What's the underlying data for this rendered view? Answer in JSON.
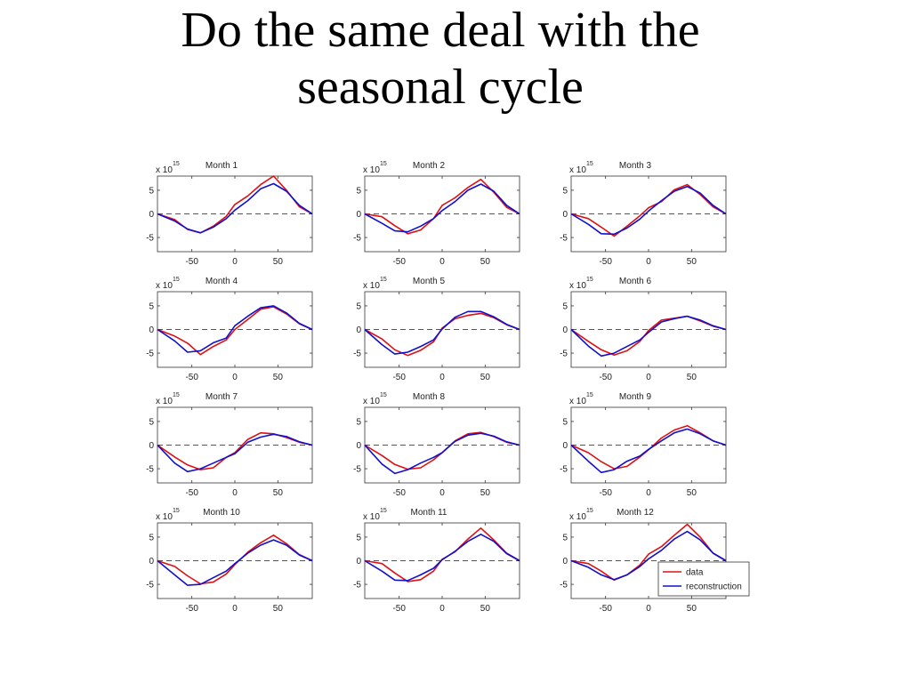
{
  "slide": {
    "title_line1": "Do the same deal with the",
    "title_line2": "seasonal cycle"
  },
  "colors": {
    "data": "#e01010",
    "reconstruction": "#1010d0",
    "zero_line": "#555555"
  },
  "chart_data": [
    {
      "type": "line",
      "title": "Month 1",
      "y_exponent": "x 10",
      "y_exponent_power": "15",
      "xlim": [
        -90,
        90
      ],
      "ylim": [
        -8,
        8
      ],
      "xticks": [
        -50,
        0,
        50
      ],
      "yticks": [
        5,
        0,
        -5
      ],
      "grid": false,
      "series": [
        {
          "name": "data",
          "color": "#e01010",
          "x": [
            -90,
            -70,
            -55,
            -40,
            -25,
            -10,
            0,
            15,
            30,
            45,
            60,
            75,
            90
          ],
          "y": [
            0,
            -1.2,
            -3.3,
            -4,
            -2.6,
            -0.5,
            2,
            3.8,
            6.2,
            8,
            5,
            1.5,
            0
          ]
        },
        {
          "name": "reconstruction",
          "color": "#1010d0",
          "x": [
            -90,
            -70,
            -55,
            -40,
            -25,
            -10,
            0,
            15,
            30,
            45,
            60,
            75,
            90
          ],
          "y": [
            0,
            -1.5,
            -3.2,
            -4,
            -2.8,
            -1,
            0.8,
            2.8,
            5.3,
            6.4,
            4.8,
            1.8,
            0
          ]
        }
      ]
    },
    {
      "type": "line",
      "title": "Month 2",
      "y_exponent": "x 10",
      "y_exponent_power": "15",
      "xlim": [
        -90,
        90
      ],
      "ylim": [
        -8,
        8
      ],
      "xticks": [
        -50,
        0,
        50
      ],
      "yticks": [
        5,
        0,
        -5
      ],
      "grid": false,
      "series": [
        {
          "name": "data",
          "color": "#e01010",
          "x": [
            -90,
            -70,
            -55,
            -40,
            -25,
            -10,
            0,
            15,
            30,
            45,
            60,
            75,
            90
          ],
          "y": [
            0,
            -0.6,
            -2.5,
            -4.2,
            -3.4,
            -1,
            1.8,
            3.4,
            5.6,
            7.3,
            4.6,
            1.4,
            0
          ]
        },
        {
          "name": "reconstruction",
          "color": "#1010d0",
          "x": [
            -90,
            -70,
            -55,
            -40,
            -25,
            -10,
            0,
            15,
            30,
            45,
            60,
            75,
            90
          ],
          "y": [
            0,
            -2,
            -3.6,
            -3.8,
            -2.6,
            -1,
            0.7,
            2.6,
            5,
            6.3,
            4.8,
            1.8,
            0
          ]
        }
      ]
    },
    {
      "type": "line",
      "title": "Month 3",
      "y_exponent": "x 10",
      "y_exponent_power": "15",
      "xlim": [
        -90,
        90
      ],
      "ylim": [
        -8,
        8
      ],
      "xticks": [
        -50,
        0,
        50
      ],
      "yticks": [
        5,
        0,
        -5
      ],
      "grid": false,
      "series": [
        {
          "name": "data",
          "color": "#e01010",
          "x": [
            -90,
            -70,
            -55,
            -40,
            -25,
            -10,
            0,
            15,
            30,
            45,
            60,
            75,
            90
          ],
          "y": [
            0,
            -1,
            -2.8,
            -4.7,
            -2.6,
            -0.4,
            1.3,
            2.6,
            5.1,
            6.2,
            4.1,
            1.5,
            0
          ]
        },
        {
          "name": "reconstruction",
          "color": "#1010d0",
          "x": [
            -90,
            -70,
            -55,
            -40,
            -25,
            -10,
            0,
            15,
            30,
            45,
            60,
            75,
            90
          ],
          "y": [
            0,
            -2.2,
            -4.2,
            -4.3,
            -3,
            -1.1,
            0.6,
            2.8,
            4.8,
            5.8,
            4.4,
            1.8,
            0
          ]
        }
      ]
    },
    {
      "type": "line",
      "title": "Month 4",
      "y_exponent": "x 10",
      "y_exponent_power": "15",
      "xlim": [
        -90,
        90
      ],
      "ylim": [
        -8,
        8
      ],
      "xticks": [
        -50,
        0,
        50
      ],
      "yticks": [
        5,
        0,
        -5
      ],
      "grid": false,
      "series": [
        {
          "name": "data",
          "color": "#e01010",
          "x": [
            -90,
            -70,
            -55,
            -40,
            -25,
            -10,
            0,
            15,
            30,
            45,
            60,
            75,
            90
          ],
          "y": [
            0,
            -1.4,
            -2.9,
            -5.3,
            -3.6,
            -2.2,
            0,
            2.1,
            4.3,
            4.8,
            3.3,
            1.2,
            0
          ]
        },
        {
          "name": "reconstruction",
          "color": "#1010d0",
          "x": [
            -90,
            -70,
            -55,
            -40,
            -25,
            -10,
            0,
            15,
            30,
            45,
            60,
            75,
            90
          ],
          "y": [
            0,
            -2.4,
            -4.8,
            -4.5,
            -2.8,
            -1.8,
            0.8,
            2.8,
            4.6,
            5,
            3.5,
            1.3,
            0
          ]
        }
      ]
    },
    {
      "type": "line",
      "title": "Month 5",
      "y_exponent": "x 10",
      "y_exponent_power": "15",
      "xlim": [
        -90,
        90
      ],
      "ylim": [
        -8,
        8
      ],
      "xticks": [
        -50,
        0,
        50
      ],
      "yticks": [
        5,
        0,
        -5
      ],
      "grid": false,
      "series": [
        {
          "name": "data",
          "color": "#e01010",
          "x": [
            -90,
            -70,
            -55,
            -40,
            -25,
            -10,
            0,
            15,
            30,
            45,
            60,
            75,
            90
          ],
          "y": [
            0,
            -2,
            -4.3,
            -5.5,
            -4.4,
            -2.6,
            0.3,
            2.3,
            3,
            3.4,
            2.5,
            1,
            0
          ]
        },
        {
          "name": "reconstruction",
          "color": "#1010d0",
          "x": [
            -90,
            -70,
            -55,
            -40,
            -25,
            -10,
            0,
            15,
            30,
            45,
            60,
            75,
            90
          ],
          "y": [
            0,
            -3.2,
            -5.2,
            -4.8,
            -3.6,
            -2.2,
            0.1,
            2.6,
            3.8,
            3.8,
            2.7,
            1.1,
            0
          ]
        }
      ]
    },
    {
      "type": "line",
      "title": "Month 6",
      "y_exponent": "x 10",
      "y_exponent_power": "15",
      "xlim": [
        -90,
        90
      ],
      "ylim": [
        -8,
        8
      ],
      "xticks": [
        -50,
        0,
        50
      ],
      "yticks": [
        5,
        0,
        -5
      ],
      "grid": false,
      "series": [
        {
          "name": "data",
          "color": "#e01010",
          "x": [
            -90,
            -70,
            -55,
            -40,
            -25,
            -10,
            0,
            15,
            30,
            45,
            60,
            75,
            90
          ],
          "y": [
            0,
            -2.5,
            -4.3,
            -5.4,
            -4.5,
            -2.5,
            -0.2,
            2,
            2.4,
            2.8,
            1.8,
            0.7,
            0
          ]
        },
        {
          "name": "reconstruction",
          "color": "#1010d0",
          "x": [
            -90,
            -70,
            -55,
            -40,
            -25,
            -10,
            0,
            15,
            30,
            45,
            60,
            75,
            90
          ],
          "y": [
            0,
            -3.5,
            -5.6,
            -5,
            -3.6,
            -2.2,
            -0.6,
            1.6,
            2.3,
            2.8,
            2,
            0.8,
            0
          ]
        }
      ]
    },
    {
      "type": "line",
      "title": "Month 7",
      "y_exponent": "x 10",
      "y_exponent_power": "15",
      "xlim": [
        -90,
        90
      ],
      "ylim": [
        -8,
        8
      ],
      "xticks": [
        -50,
        0,
        50
      ],
      "yticks": [
        5,
        0,
        -5
      ],
      "grid": false,
      "series": [
        {
          "name": "data",
          "color": "#e01010",
          "x": [
            -90,
            -70,
            -55,
            -40,
            -25,
            -10,
            0,
            15,
            30,
            45,
            60,
            75,
            90
          ],
          "y": [
            0,
            -2.5,
            -4.2,
            -5.2,
            -4.8,
            -2.6,
            -1.6,
            1.2,
            2.6,
            2.4,
            1.6,
            0.6,
            0
          ]
        },
        {
          "name": "reconstruction",
          "color": "#1010d0",
          "x": [
            -90,
            -70,
            -55,
            -40,
            -25,
            -10,
            0,
            15,
            30,
            45,
            60,
            75,
            90
          ],
          "y": [
            0,
            -3.8,
            -5.6,
            -5,
            -3.8,
            -2.6,
            -1.8,
            0.6,
            1.7,
            2.3,
            1.8,
            0.7,
            0
          ]
        }
      ]
    },
    {
      "type": "line",
      "title": "Month 8",
      "y_exponent": "x 10",
      "y_exponent_power": "15",
      "xlim": [
        -90,
        90
      ],
      "ylim": [
        -8,
        8
      ],
      "xticks": [
        -50,
        0,
        50
      ],
      "yticks": [
        5,
        0,
        -5
      ],
      "grid": false,
      "series": [
        {
          "name": "data",
          "color": "#e01010",
          "x": [
            -90,
            -70,
            -55,
            -40,
            -25,
            -10,
            0,
            15,
            30,
            45,
            60,
            75,
            90
          ],
          "y": [
            0,
            -2.2,
            -4.1,
            -5.1,
            -4.8,
            -3.1,
            -1.6,
            0.9,
            2.4,
            2.7,
            1.8,
            0.6,
            0
          ]
        },
        {
          "name": "reconstruction",
          "color": "#1010d0",
          "x": [
            -90,
            -70,
            -55,
            -40,
            -25,
            -10,
            0,
            15,
            30,
            45,
            60,
            75,
            90
          ],
          "y": [
            0,
            -4,
            -6,
            -5.2,
            -3.8,
            -2.6,
            -1.6,
            0.8,
            2.1,
            2.5,
            1.9,
            0.7,
            0
          ]
        }
      ]
    },
    {
      "type": "line",
      "title": "Month 9",
      "y_exponent": "x 10",
      "y_exponent_power": "15",
      "xlim": [
        -90,
        90
      ],
      "ylim": [
        -8,
        8
      ],
      "xticks": [
        -50,
        0,
        50
      ],
      "yticks": [
        5,
        0,
        -5
      ],
      "grid": false,
      "series": [
        {
          "name": "data",
          "color": "#e01010",
          "x": [
            -90,
            -70,
            -55,
            -40,
            -25,
            -10,
            0,
            15,
            30,
            45,
            60,
            75,
            90
          ],
          "y": [
            0,
            -1.6,
            -3.5,
            -5,
            -4.5,
            -2.5,
            -1,
            1.5,
            3.2,
            4.1,
            2.6,
            0.9,
            0
          ]
        },
        {
          "name": "reconstruction",
          "color": "#1010d0",
          "x": [
            -90,
            -70,
            -55,
            -40,
            -25,
            -10,
            0,
            15,
            30,
            45,
            60,
            75,
            90
          ],
          "y": [
            0,
            -3.4,
            -5.8,
            -5.2,
            -3.4,
            -2.3,
            -0.9,
            0.9,
            2.6,
            3.4,
            2.4,
            0.9,
            0
          ]
        }
      ]
    },
    {
      "type": "line",
      "title": "Month 10",
      "y_exponent": "x 10",
      "y_exponent_power": "15",
      "xlim": [
        -90,
        90
      ],
      "ylim": [
        -8,
        8
      ],
      "xticks": [
        -50,
        0,
        50
      ],
      "yticks": [
        5,
        0,
        -5
      ],
      "grid": false,
      "series": [
        {
          "name": "data",
          "color": "#e01010",
          "x": [
            -90,
            -70,
            -55,
            -40,
            -25,
            -10,
            0,
            15,
            30,
            45,
            60,
            75,
            90
          ],
          "y": [
            0,
            -1.2,
            -3.2,
            -4.9,
            -4.5,
            -2.8,
            -0.8,
            1.8,
            3.8,
            5.4,
            3.6,
            1.3,
            0
          ]
        },
        {
          "name": "reconstruction",
          "color": "#1010d0",
          "x": [
            -90,
            -70,
            -55,
            -40,
            -25,
            -10,
            0,
            15,
            30,
            45,
            60,
            75,
            90
          ],
          "y": [
            0,
            -3,
            -5.2,
            -5,
            -3.6,
            -2.2,
            -0.6,
            1.6,
            3.3,
            4.4,
            3.3,
            1.2,
            0
          ]
        }
      ]
    },
    {
      "type": "line",
      "title": "Month 11",
      "y_exponent": "x 10",
      "y_exponent_power": "15",
      "xlim": [
        -90,
        90
      ],
      "ylim": [
        -8,
        8
      ],
      "xticks": [
        -50,
        0,
        50
      ],
      "yticks": [
        5,
        0,
        -5
      ],
      "grid": false,
      "series": [
        {
          "name": "data",
          "color": "#e01010",
          "x": [
            -90,
            -70,
            -55,
            -40,
            -25,
            -10,
            0,
            15,
            30,
            45,
            60,
            75,
            90
          ],
          "y": [
            0,
            -0.6,
            -2.6,
            -4.4,
            -4,
            -2.2,
            0.3,
            1.9,
            4.6,
            6.9,
            4.4,
            1.6,
            0
          ]
        },
        {
          "name": "reconstruction",
          "color": "#1010d0",
          "x": [
            -90,
            -70,
            -55,
            -40,
            -25,
            -10,
            0,
            15,
            30,
            45,
            60,
            75,
            90
          ],
          "y": [
            0,
            -2.2,
            -4.1,
            -4.2,
            -3,
            -1.6,
            0.2,
            2,
            4.1,
            5.6,
            4.1,
            1.5,
            0
          ]
        }
      ]
    },
    {
      "type": "line",
      "title": "Month 12",
      "y_exponent": "x 10",
      "y_exponent_power": "15",
      "xlim": [
        -90,
        90
      ],
      "ylim": [
        -8,
        8
      ],
      "xticks": [
        -50,
        0,
        50
      ],
      "yticks": [
        5,
        0,
        -5
      ],
      "grid": false,
      "legend_placement": "bottom-right",
      "legend": [
        "data",
        "reconstruction"
      ],
      "series": [
        {
          "name": "data",
          "color": "#e01010",
          "x": [
            -90,
            -70,
            -55,
            -40,
            -25,
            -10,
            0,
            15,
            30,
            45,
            60,
            75,
            90
          ],
          "y": [
            0,
            -0.6,
            -2.2,
            -4.1,
            -3,
            -0.9,
            1.4,
            3,
            5.4,
            7.7,
            5,
            1.6,
            0
          ]
        },
        {
          "name": "reconstruction",
          "color": "#1010d0",
          "x": [
            -90,
            -70,
            -55,
            -40,
            -25,
            -10,
            0,
            15,
            30,
            45,
            60,
            75,
            90
          ],
          "y": [
            0,
            -1.4,
            -3,
            -4,
            -3,
            -1.2,
            0.4,
            2.2,
            4.6,
            6.2,
            4.4,
            1.6,
            0
          ]
        }
      ]
    }
  ]
}
